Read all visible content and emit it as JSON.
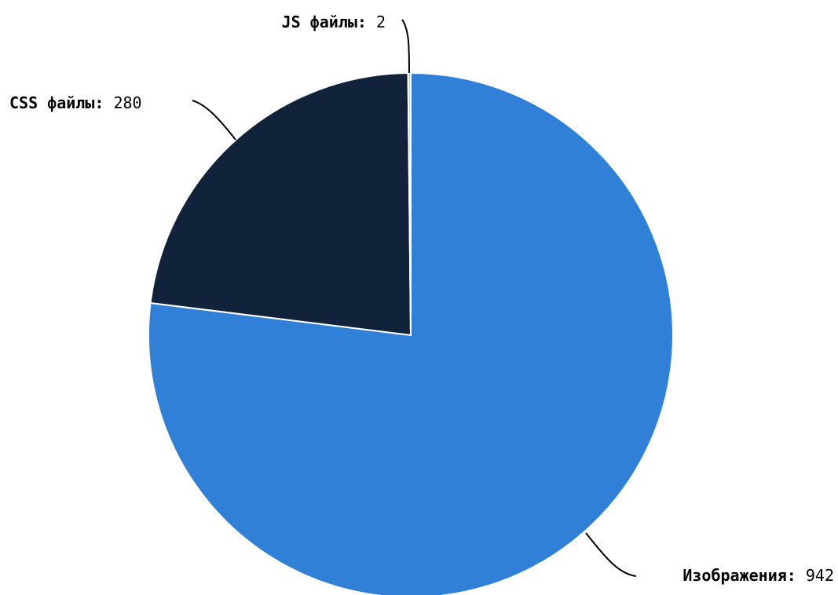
{
  "chart_data": {
    "type": "pie",
    "title": "",
    "legend": "none",
    "label_separator": ":",
    "slices": [
      {
        "name": "Изображения",
        "value": 942,
        "color": "#3080d8"
      },
      {
        "name": "CSS файлы",
        "value": 280,
        "color": "#10233a"
      },
      {
        "name": "JS файлы",
        "value": 2,
        "color": "#c8e06a"
      }
    ]
  }
}
